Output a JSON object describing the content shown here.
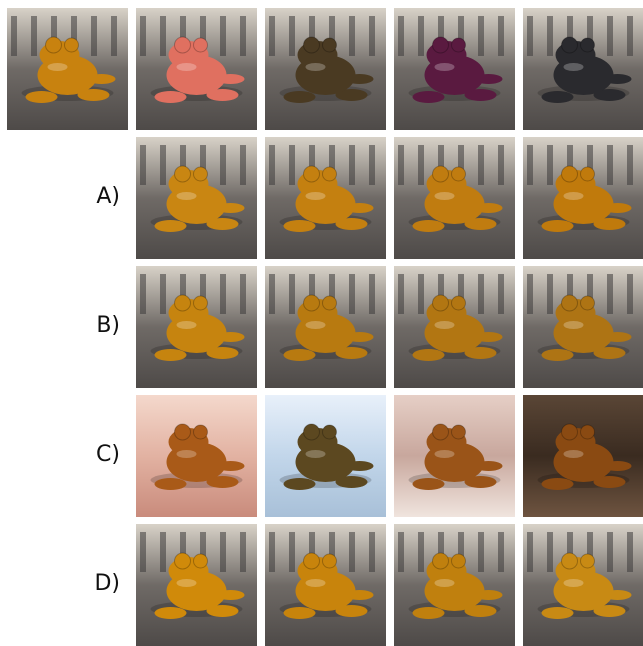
{
  "figure": {
    "rows": [
      {
        "label": null
      },
      {
        "label": "A)"
      },
      {
        "label": "B)"
      },
      {
        "label": "C)"
      },
      {
        "label": "D)"
      }
    ]
  }
}
